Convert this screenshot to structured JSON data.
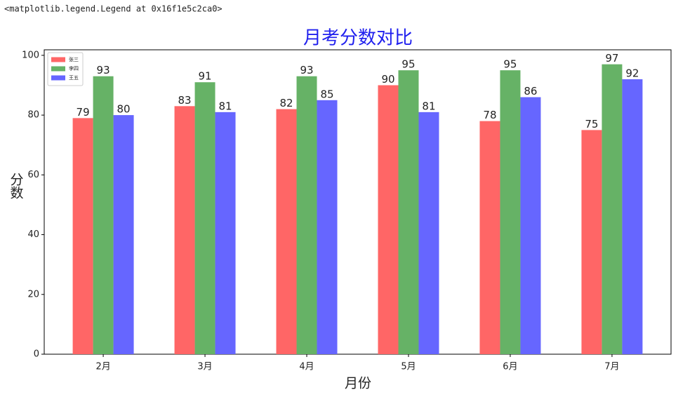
{
  "header": "<matplotlib.legend.Legend at 0x16f1e5c2ca0>",
  "chart_data": {
    "type": "bar",
    "title": "月考分数对比",
    "title_color": "#2020ee",
    "xlabel": "月份",
    "ylabel": "分数",
    "categories": [
      "2月",
      "3月",
      "4月",
      "5月",
      "6月",
      "7月"
    ],
    "series": [
      {
        "name": "张三",
        "color": "#ff6666",
        "values": [
          79,
          83,
          82,
          90,
          78,
          75
        ]
      },
      {
        "name": "李四",
        "color": "#66b266",
        "values": [
          93,
          91,
          93,
          95,
          95,
          97
        ]
      },
      {
        "name": "王五",
        "color": "#6666ff",
        "values": [
          80,
          81,
          85,
          81,
          86,
          92
        ]
      }
    ],
    "ylim": [
      0,
      101.85
    ],
    "yticks": [
      0,
      20,
      40,
      60,
      80,
      100
    ],
    "legend": "upper left",
    "grid": false
  }
}
